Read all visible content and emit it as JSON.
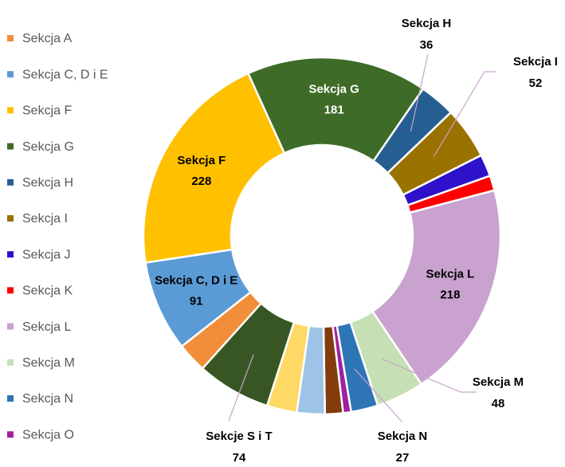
{
  "chart_data": {
    "type": "donut",
    "categories": [
      "Sekcja A",
      "Sekcja C, D i E",
      "Sekcja F",
      "Sekcja G",
      "Sekcja H",
      "Sekcja I",
      "Sekcja J",
      "Sekcja K",
      "Sekcja L",
      "Sekcja M",
      "Sekcja N",
      "Sekcja O",
      null,
      null,
      null,
      "Sekcje S i T"
    ],
    "values": [
      30,
      91,
      228,
      181,
      36,
      52,
      22,
      15,
      218,
      48,
      27,
      8,
      18,
      28,
      30,
      74
    ],
    "colors": [
      "#f28e3a",
      "#5b9bd5",
      "#ffc000",
      "#3e6b27",
      "#255e91",
      "#9a7200",
      "#2e12c9",
      "#ff0000",
      "#c9a2cf",
      "#c5e0b4",
      "#2e75b6",
      "#a020a0",
      "#843c0c",
      "#9dc3e6",
      "#ffd966",
      "#375623"
    ],
    "legend": "left"
  }
}
